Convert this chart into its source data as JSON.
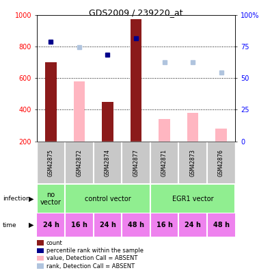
{
  "title": "GDS2009 / 239220_at",
  "samples": [
    "GSM42875",
    "GSM42872",
    "GSM42874",
    "GSM42877",
    "GSM42871",
    "GSM42873",
    "GSM42876"
  ],
  "count_values": [
    700,
    null,
    450,
    975,
    null,
    null,
    null
  ],
  "rank_values": [
    830,
    null,
    750,
    855,
    null,
    null,
    null
  ],
  "value_absent": [
    null,
    580,
    null,
    null,
    340,
    380,
    280
  ],
  "rank_absent": [
    null,
    795,
    null,
    null,
    700,
    700,
    635
  ],
  "ylim": [
    200,
    1000
  ],
  "ylim_right": [
    0,
    100
  ],
  "yticks_left": [
    200,
    400,
    600,
    800,
    1000
  ],
  "yticks_right": [
    0,
    25,
    50,
    75,
    100
  ],
  "ytick_right_labels": [
    "0",
    "25",
    "50",
    "75",
    "100%"
  ],
  "time_labels": [
    "24 h",
    "16 h",
    "24 h",
    "48 h",
    "16 h",
    "24 h",
    "48 h"
  ],
  "time_color": "#EE82EE",
  "bar_color_count": "#8B1A1A",
  "bar_color_absent": "#FFB6C1",
  "dot_color_rank": "#00008B",
  "dot_color_rank_absent": "#B0C4DE",
  "sample_bg_color": "#C8C8C8",
  "infection_novector_color": "#90EE90",
  "infection_control_color": "#90EE90",
  "infection_egr1_color": "#90EE90",
  "legend_items": [
    {
      "label": "count",
      "color": "#8B1A1A"
    },
    {
      "label": "percentile rank within the sample",
      "color": "#00008B"
    },
    {
      "label": "value, Detection Call = ABSENT",
      "color": "#FFB6C1"
    },
    {
      "label": "rank, Detection Call = ABSENT",
      "color": "#B0C4DE"
    }
  ],
  "grid_dotted_at": [
    400,
    600,
    800
  ],
  "bar_width": 0.4,
  "dot_size": 5
}
